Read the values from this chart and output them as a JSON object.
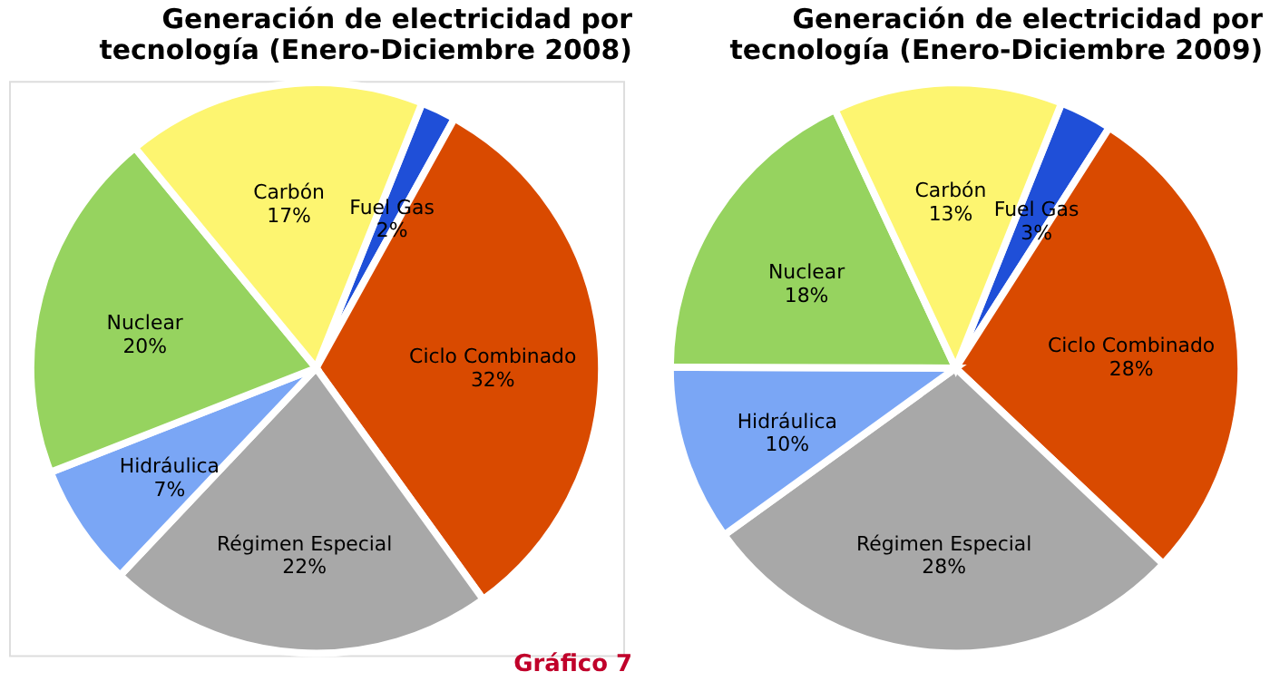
{
  "chart_data": [
    {
      "type": "pie",
      "title": "Generación de electricidad por\ntecnología (Enero-Diciembre 2008)",
      "categories": [
        "Fuel Gas",
        "Ciclo Combinado",
        "Régimen Especial",
        "Hidráulica",
        "Nuclear",
        "Carbón"
      ],
      "values": [
        2,
        32,
        22,
        7,
        20,
        17
      ],
      "value_labels": [
        "2%",
        "32%",
        "22%",
        "7%",
        "20%",
        "17%"
      ],
      "colors": [
        "#1f4fd8",
        "#d94a00",
        "#a8a8a8",
        "#7aa6f5",
        "#96d35f",
        "#fdf570"
      ],
      "annotations": [
        "Gráfico 7"
      ]
    },
    {
      "type": "pie",
      "title": "Generación de electricidad por\ntecnología (Enero-Diciembre 2009)",
      "categories": [
        "Fuel Gas",
        "Ciclo Combinado",
        "Régimen Especial",
        "Hidráulica",
        "Nuclear",
        "Carbón"
      ],
      "values": [
        3,
        28,
        28,
        10,
        18,
        13
      ],
      "value_labels": [
        "3%",
        "28%",
        "28%",
        "10%",
        "18%",
        "13%"
      ],
      "colors": [
        "#1f4fd8",
        "#d94a00",
        "#a8a8a8",
        "#7aa6f5",
        "#96d35f",
        "#fdf570"
      ]
    }
  ]
}
